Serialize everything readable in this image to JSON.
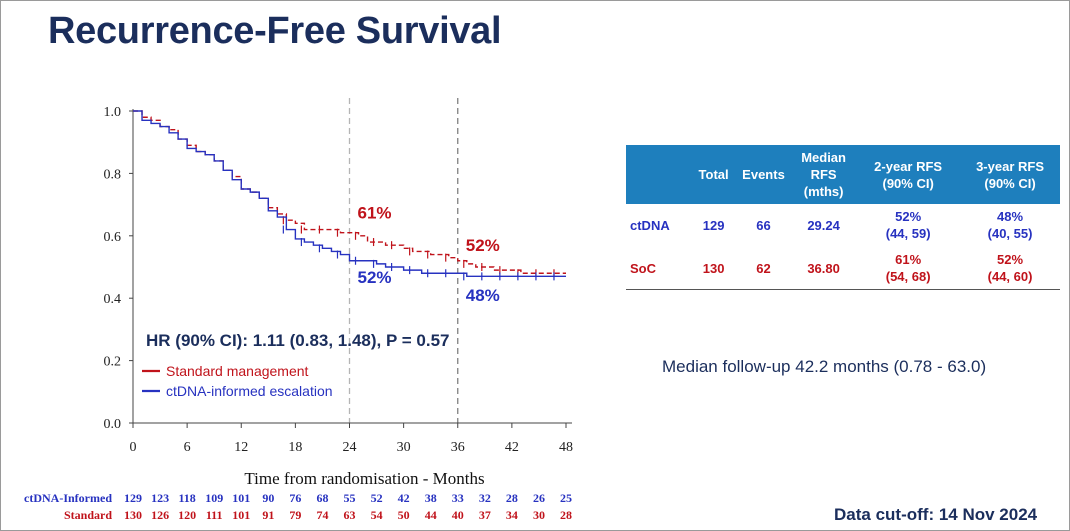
{
  "slide": {
    "title": "Recurrence-Free Survival",
    "followup": "Median follow-up 42.2 months (0.78 - 63.0)",
    "cutoff": "Data cut-off: 14 Nov 2024"
  },
  "table": {
    "headers": [
      "",
      "Total",
      "Events",
      "Median\nRFS\n(mths)",
      "2-year RFS\n(90% CI)",
      "3-year RFS\n(90% CI)"
    ],
    "rows": [
      {
        "label": "ctDNA",
        "total": "129",
        "events": "66",
        "median": "29.24",
        "rfs2": "52%",
        "rfs2_ci": "(44, 59)",
        "rfs3": "48%",
        "rfs3_ci": "(40, 55)"
      },
      {
        "label": "SoC",
        "total": "130",
        "events": "62",
        "median": "36.80",
        "rfs2": "61%",
        "rfs2_ci": "(54, 68)",
        "rfs3": "52%",
        "rfs3_ci": "(44, 60)"
      }
    ]
  },
  "chart_data": {
    "type": "line",
    "title": "",
    "xlabel": "Time from randomisation - Months",
    "ylabel": "",
    "xlim": [
      0,
      48
    ],
    "ylim": [
      0,
      1
    ],
    "xticks": [
      "0",
      "6",
      "12",
      "18",
      "24",
      "30",
      "36",
      "42",
      "48"
    ],
    "yticks": [
      "0.0",
      "0.2",
      "0.4",
      "0.6",
      "0.8",
      "1.0"
    ],
    "reference_lines_x": [
      24,
      36
    ],
    "hr_text": "HR (90% CI): 1.11 (0.83, 1.48), P = 0.57",
    "legend": [
      {
        "name": "Standard management",
        "color": "#c0131b"
      },
      {
        "name": "ctDNA-informed escalation",
        "color": "#2732c0"
      }
    ],
    "annotations": [
      {
        "text": "61%",
        "x": 24,
        "y": 0.61,
        "color": "#c0131b"
      },
      {
        "text": "52%",
        "x": 24,
        "y": 0.52,
        "color": "#2732c0"
      },
      {
        "text": "52%",
        "x": 36,
        "y": 0.52,
        "color": "#c0131b"
      },
      {
        "text": "48%",
        "x": 36,
        "y": 0.48,
        "color": "#2732c0"
      }
    ],
    "series": [
      {
        "name": "Standard management",
        "color": "#c0131b",
        "dashed": true,
        "x": [
          0,
          1,
          2,
          3,
          4,
          5,
          6,
          7,
          8,
          9,
          10,
          11,
          12,
          13,
          14,
          15,
          16,
          17,
          18,
          19,
          20,
          21,
          22,
          23,
          24,
          25,
          26,
          27,
          28,
          29,
          30,
          31,
          32,
          33,
          34,
          35,
          36,
          37,
          38,
          39,
          40,
          41,
          42,
          43,
          44,
          45,
          46,
          47,
          48
        ],
        "y": [
          1.0,
          0.98,
          0.97,
          0.95,
          0.94,
          0.91,
          0.89,
          0.87,
          0.86,
          0.84,
          0.81,
          0.79,
          0.75,
          0.74,
          0.72,
          0.69,
          0.67,
          0.65,
          0.64,
          0.62,
          0.62,
          0.62,
          0.62,
          0.61,
          0.61,
          0.6,
          0.58,
          0.58,
          0.57,
          0.57,
          0.56,
          0.55,
          0.55,
          0.54,
          0.54,
          0.53,
          0.52,
          0.51,
          0.5,
          0.5,
          0.49,
          0.49,
          0.49,
          0.48,
          0.48,
          0.48,
          0.48,
          0.48,
          0.48
        ]
      },
      {
        "name": "ctDNA-informed escalation",
        "color": "#2732c0",
        "dashed": false,
        "x": [
          0,
          1,
          2,
          3,
          4,
          5,
          6,
          7,
          8,
          9,
          10,
          11,
          12,
          13,
          14,
          15,
          16,
          17,
          18,
          19,
          20,
          21,
          22,
          23,
          24,
          25,
          26,
          27,
          28,
          29,
          30,
          31,
          32,
          33,
          34,
          35,
          36,
          37,
          38,
          39,
          40,
          41,
          42,
          43,
          44,
          45,
          46,
          47,
          48
        ],
        "y": [
          1.0,
          0.97,
          0.96,
          0.95,
          0.93,
          0.91,
          0.88,
          0.87,
          0.86,
          0.84,
          0.81,
          0.78,
          0.75,
          0.74,
          0.72,
          0.68,
          0.66,
          0.62,
          0.59,
          0.58,
          0.57,
          0.56,
          0.55,
          0.54,
          0.52,
          0.52,
          0.52,
          0.51,
          0.5,
          0.5,
          0.49,
          0.49,
          0.48,
          0.48,
          0.48,
          0.48,
          0.48,
          0.47,
          0.47,
          0.47,
          0.47,
          0.47,
          0.47,
          0.47,
          0.47,
          0.47,
          0.47,
          0.47,
          0.47
        ]
      }
    ],
    "risk_table": {
      "times": [
        0,
        3,
        6,
        9,
        12,
        15,
        18,
        21,
        24,
        27,
        30,
        33,
        36,
        39,
        42,
        45,
        48
      ],
      "rows": [
        {
          "label": "ctDNA-Informed",
          "color": "#2732c0",
          "values": [
            "129",
            "123",
            "118",
            "109",
            "101",
            "90",
            "76",
            "68",
            "55",
            "52",
            "42",
            "38",
            "33",
            "32",
            "28",
            "26",
            "25"
          ]
        },
        {
          "label": "Standard",
          "color": "#c0131b",
          "values": [
            "130",
            "126",
            "120",
            "111",
            "101",
            "91",
            "79",
            "74",
            "63",
            "54",
            "50",
            "44",
            "40",
            "37",
            "34",
            "30",
            "28"
          ]
        }
      ]
    }
  }
}
